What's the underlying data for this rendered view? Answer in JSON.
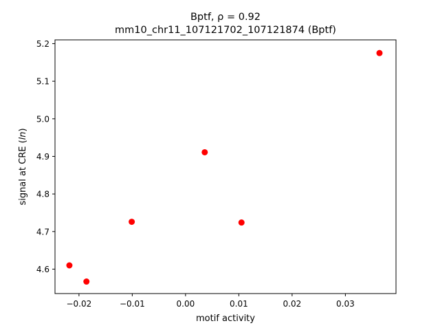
{
  "figure": {
    "title_line1": "Bptf, ρ = 0.92",
    "title_line2": "mm10_chr11_107121702_107121874 (Bptf)"
  },
  "chart_data": {
    "type": "scatter",
    "title": "Bptf, ρ = 0.92\nmm10_chr11_107121702_107121874 (Bptf)",
    "xlabel": "motif activity",
    "ylabel": "signal at CRE (ln)",
    "xlim": [
      -0.0245,
      0.0395
    ],
    "ylim": [
      4.535,
      5.21
    ],
    "xticks": [
      -0.02,
      -0.01,
      0.0,
      0.01,
      0.02,
      0.03
    ],
    "xtick_labels": [
      "−0.02",
      "−0.01",
      "0.00",
      "0.01",
      "0.02",
      "0.03"
    ],
    "yticks": [
      4.6,
      4.7,
      4.8,
      4.9,
      5.0,
      5.1,
      5.2
    ],
    "ytick_labels": [
      "4.6",
      "4.7",
      "4.8",
      "4.9",
      "5.0",
      "5.1",
      "5.2"
    ],
    "grid": false,
    "marker_color": "#ff0000",
    "points": [
      {
        "x": -0.0218,
        "y": 4.61
      },
      {
        "x": -0.0186,
        "y": 4.567
      },
      {
        "x": -0.0101,
        "y": 4.726
      },
      {
        "x": 0.0036,
        "y": 4.911
      },
      {
        "x": 0.0105,
        "y": 4.724
      },
      {
        "x": 0.0364,
        "y": 5.175
      }
    ]
  }
}
